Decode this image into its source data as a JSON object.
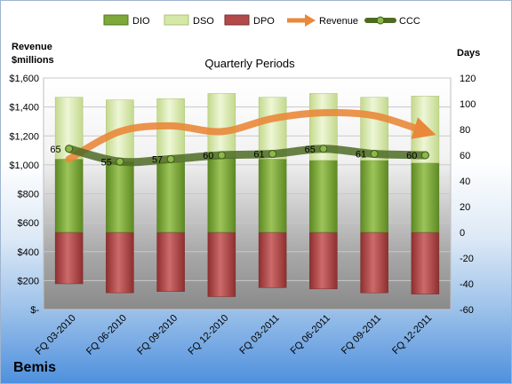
{
  "company": "Bemis",
  "chart_data": {
    "type": "bar",
    "title": "Quarterly Periods",
    "left_axis_label": [
      "Revenue",
      "$millions"
    ],
    "right_axis_label": "Days",
    "categories": [
      "FQ 03-2010",
      "FQ 06-2010",
      "FQ 09-2010",
      "FQ 12-2010",
      "FQ 03-2011",
      "FQ 06-2011",
      "FQ 09-2011",
      "FQ 12-2011"
    ],
    "left_ticks": [
      "$-",
      "$200",
      "$400",
      "$600",
      "$800",
      "$1,000",
      "$1,200",
      "$1,400",
      "$1,600"
    ],
    "right_ticks": [
      "-60",
      "-40",
      "-20",
      "0",
      "20",
      "40",
      "60",
      "80",
      "100",
      "120"
    ],
    "ylim_days": [
      -60,
      120
    ],
    "ylim_revenue": [
      0,
      1600
    ],
    "series": [
      {
        "name": "DIO",
        "color": "#7ea83a",
        "values": [
          57,
          55,
          55,
          58,
          57,
          56,
          56,
          54
        ]
      },
      {
        "name": "DSO",
        "color": "#d6e8a8",
        "values": [
          48,
          48,
          49,
          50,
          48,
          52,
          49,
          52
        ]
      },
      {
        "name": "DPO",
        "color": "#b34a4a",
        "values": [
          -40,
          -47,
          -46,
          -50,
          -43,
          -44,
          -47,
          -48
        ]
      },
      {
        "name": "Revenue",
        "color": "#e9883a",
        "values": [
          1040,
          1230,
          1270,
          1230,
          1320,
          1360,
          1340,
          1230
        ]
      },
      {
        "name": "CCC",
        "color": "#5c7a2e",
        "values": [
          65,
          55,
          57,
          60,
          61,
          65,
          61,
          60
        ]
      }
    ],
    "ccc_labels": [
      "65",
      "55",
      "57",
      "60",
      "61",
      "65",
      "61",
      "60"
    ]
  }
}
